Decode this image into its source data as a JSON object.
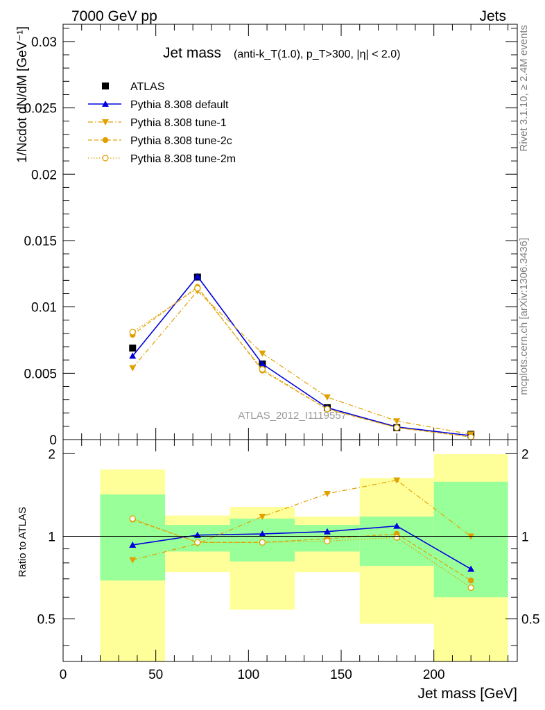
{
  "header": {
    "energy": "7000 GeV pp",
    "process": "Jets"
  },
  "side_labels": {
    "rivet": "Rivet 3.1.10, ≥ 2.4M events",
    "mcplots": "mcplots.cern.ch [arXiv:1306.3436]"
  },
  "chart_data": {
    "type": "line",
    "title": "Jet mass",
    "subtitle": "(anti-k_T(1.0), p_T>300, |η| < 2.0)",
    "watermark": "ATLAS_2012_I1119557",
    "xlabel": "Jet mass [GeV]",
    "ylabel": "1/Ncdot dN/dM [GeV⁻¹]",
    "ratio_ylabel": "Ratio to ATLAS",
    "xlim": [
      0,
      245
    ],
    "ylim": [
      0,
      0.0313
    ],
    "ratio_ylim": [
      0.35,
      2.25
    ],
    "x_ticks": [
      "0",
      "50",
      "100",
      "150",
      "200"
    ],
    "y_ticks": [
      "0",
      "0.005",
      "0.01",
      "0.015",
      "0.02",
      "0.025",
      "0.03"
    ],
    "ratio_ticks": [
      "0.5",
      "1",
      "2"
    ],
    "grid": false,
    "legend_position": "top-left",
    "bins": [
      [
        20,
        55
      ],
      [
        55,
        90
      ],
      [
        90,
        125
      ],
      [
        125,
        160
      ],
      [
        160,
        200
      ],
      [
        200,
        240
      ]
    ],
    "x": [
      37.5,
      72.5,
      107.5,
      142.5,
      180,
      220
    ],
    "series": [
      {
        "name": "ATLAS",
        "color": "#000000",
        "marker": "square",
        "dash": "none",
        "values": [
          0.0069,
          0.01225,
          0.0057,
          0.0024,
          0.0009,
          0.0004
        ],
        "ratio": [
          1.0,
          1.0,
          1.0,
          1.0,
          1.0,
          1.0
        ]
      },
      {
        "name": "Pythia 8.308 default",
        "color": "#0000dd",
        "marker": "triangle-up",
        "dash": "solid",
        "values": [
          0.0063,
          0.0123,
          0.0057,
          0.0024,
          0.00095,
          0.0003
        ],
        "ratio": [
          0.93,
          1.01,
          1.02,
          1.04,
          1.09,
          0.76
        ]
      },
      {
        "name": "Pythia 8.308 tune-1",
        "color": "#e0a000",
        "marker": "triangle-down",
        "dash": "dashdot",
        "values": [
          0.0054,
          0.0112,
          0.0065,
          0.0032,
          0.0014,
          0.0004
        ],
        "ratio": [
          0.82,
          0.94,
          1.18,
          1.43,
          1.6,
          1.0
        ]
      },
      {
        "name": "Pythia 8.308 tune-2c",
        "color": "#e0a000",
        "marker": "circle",
        "dash": "dashed",
        "values": [
          0.0079,
          0.0115,
          0.0052,
          0.0023,
          0.0009,
          0.0002
        ],
        "ratio": [
          1.15,
          0.95,
          0.95,
          0.98,
          1.02,
          0.69
        ]
      },
      {
        "name": "Pythia 8.308 tune-2m",
        "color": "#e0a000",
        "marker": "circle-open",
        "dash": "dotted",
        "values": [
          0.0081,
          0.0114,
          0.0053,
          0.0023,
          0.0009,
          0.0002
        ],
        "ratio": [
          1.16,
          0.95,
          0.95,
          0.96,
          0.99,
          0.65
        ]
      }
    ],
    "uncertainty_bands": {
      "inner_color": "#99ff99",
      "outer_color": "#ffff99",
      "inner": [
        [
          0.69,
          1.42
        ],
        [
          0.88,
          1.1
        ],
        [
          0.81,
          1.16
        ],
        [
          0.88,
          1.1
        ],
        [
          0.78,
          1.18
        ],
        [
          0.6,
          1.58
        ]
      ],
      "outer": [
        [
          0.35,
          1.75
        ],
        [
          0.74,
          1.19
        ],
        [
          0.54,
          1.28
        ],
        [
          0.74,
          1.18
        ],
        [
          0.48,
          1.63
        ],
        [
          0.35,
          1.99
        ]
      ]
    }
  }
}
